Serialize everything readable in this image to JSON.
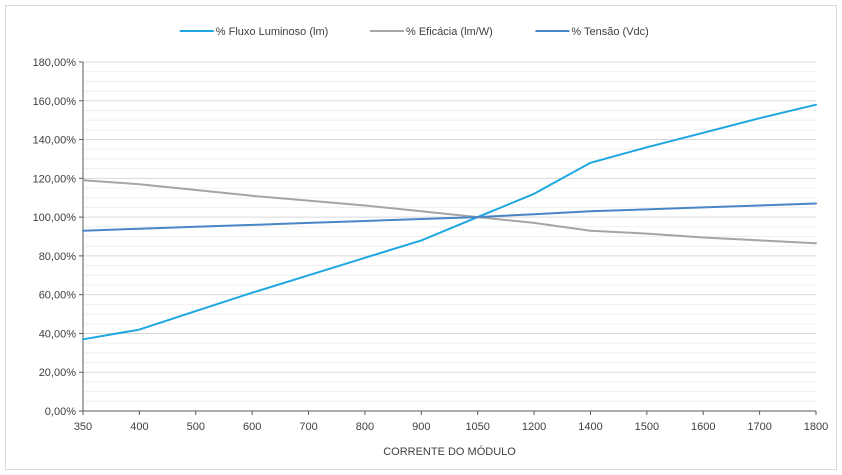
{
  "chart_data": {
    "type": "line",
    "categories": [
      "350",
      "400",
      "500",
      "600",
      "700",
      "800",
      "900",
      "1050",
      "1200",
      "1400",
      "1500",
      "1600",
      "1700",
      "1800"
    ],
    "series": [
      {
        "name": "% Fluxo Luminoso (lm)",
        "color": "#1ea7e1",
        "values": [
          37,
          42,
          51.5,
          61,
          70,
          79,
          88,
          100,
          112,
          128,
          136,
          143.5,
          151,
          158
        ]
      },
      {
        "name": "% Eficácia (lm/W)",
        "color": "#a5a5a5",
        "values": [
          119,
          117,
          114,
          111,
          108.5,
          106,
          103,
          100,
          97,
          93,
          91.5,
          89.5,
          88,
          86.5
        ]
      },
      {
        "name": "% Tensão (Vdc)",
        "color": "#4a86c5",
        "values": [
          93,
          94,
          95,
          96,
          97,
          98,
          99,
          100,
          101.5,
          103,
          104,
          105,
          106,
          107
        ]
      }
    ],
    "xlabel": "CORRENTE DO MÓDULO",
    "ylabel": "",
    "ylim": [
      0,
      180
    ],
    "yticks": [
      "0,00%",
      "20,00%",
      "40,00%",
      "60,00%",
      "80,00%",
      "100,00%",
      "120,00%",
      "140,00%",
      "160,00%",
      "180,00%"
    ],
    "grid": true,
    "legend": "top-center"
  }
}
